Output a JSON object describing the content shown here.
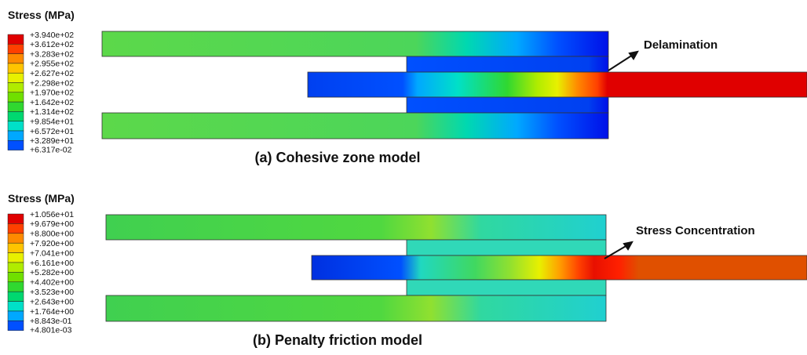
{
  "legend_colors": [
    "#e00000",
    "#ff4000",
    "#ff8a00",
    "#ffc400",
    "#e8f000",
    "#b0ec00",
    "#70e000",
    "#30d830",
    "#00d870",
    "#00e0c8",
    "#00a8ff",
    "#0050ff",
    "#0000e8"
  ],
  "panels": [
    {
      "legend": {
        "title": "Stress (MPa)",
        "labels": [
          "+3.940e+02",
          "+3.612e+02",
          "+3.283e+02",
          "+2.955e+02",
          "+2.627e+02",
          "+2.298e+02",
          "+1.970e+02",
          "+1.642e+02",
          "+1.314e+02",
          "+9.854e+01",
          "+6.572e+01",
          "+3.289e+01",
          "+6.317e-02"
        ]
      },
      "annotation": "Delamination",
      "caption": "(a) Cohesive zone model"
    },
    {
      "legend": {
        "title": "Stress (MPa)",
        "labels": [
          "+1.056e+01",
          "+9.679e+00",
          "+8.800e+00",
          "+7.920e+00",
          "+7.041e+00",
          "+6.161e+00",
          "+5.282e+00",
          "+4.402e+00",
          "+3.523e+00",
          "+2.643e+00",
          "+1.764e+00",
          "+8.843e-01",
          "+4.801e-03"
        ]
      },
      "annotation": "Stress Concentration",
      "caption": "(b) Penalty friction model"
    }
  ]
}
